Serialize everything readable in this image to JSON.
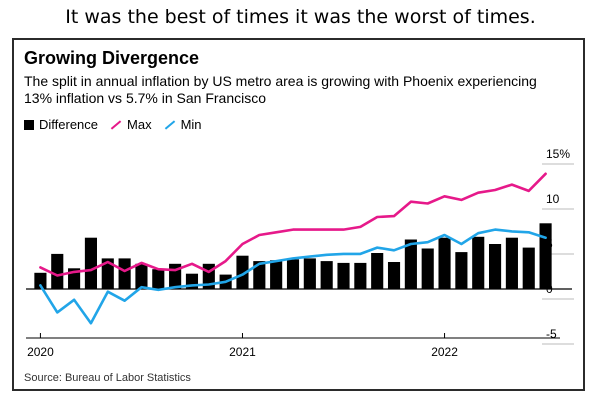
{
  "caption": "It was the best of times it was the worst of times.",
  "title": "Growing Divergence",
  "subtitle": "The split in annual inflation by US metro area is growing with Phoenix experiencing 13% inflation vs 5.7% in San Francisco",
  "source": "Source: Bureau of Labor Statistics",
  "chart_data": {
    "type": "bar",
    "title": "Growing Divergence",
    "x_tick_labels": [
      "2020",
      "2021",
      "2022"
    ],
    "y_tick_labels": [
      "15%",
      "10",
      "5",
      "0",
      "-5"
    ],
    "ylim": [
      -6,
      16
    ],
    "grid": false,
    "legend_position": "top-left",
    "series": [
      {
        "name": "Difference",
        "type": "bar",
        "color": "#000000",
        "values": [
          1.8,
          3.9,
          2.3,
          5.7,
          3.4,
          3.4,
          2.8,
          2.2,
          2.8,
          1.7,
          2.8,
          1.6,
          3.7,
          3.1,
          3.2,
          3.3,
          3.4,
          3.1,
          2.9,
          2.9,
          4.0,
          3.0,
          5.5,
          4.5,
          5.7,
          4.1,
          5.8,
          5.0,
          5.7,
          4.6,
          7.3
        ]
      },
      {
        "name": "Max",
        "type": "line",
        "color": "#e6198a",
        "values": [
          2.4,
          1.5,
          1.9,
          2.1,
          3.0,
          2.0,
          2.9,
          2.2,
          2.1,
          2.8,
          1.9,
          3.1,
          5.0,
          6.0,
          6.3,
          6.6,
          6.6,
          6.6,
          6.6,
          6.9,
          8.0,
          8.1,
          9.7,
          9.5,
          10.3,
          9.9,
          10.7,
          11.0,
          11.6,
          10.9,
          12.8
        ]
      },
      {
        "name": "Min",
        "type": "line",
        "color": "#21a5e8",
        "values": [
          0.4,
          -2.6,
          -1.2,
          -3.8,
          -0.3,
          -1.3,
          0.2,
          -0.1,
          0.2,
          0.4,
          0.5,
          0.8,
          1.6,
          2.8,
          3.1,
          3.4,
          3.6,
          3.8,
          3.9,
          3.9,
          4.6,
          4.3,
          5.0,
          5.2,
          6.0,
          5.0,
          6.2,
          6.6,
          6.4,
          6.3,
          5.7
        ]
      }
    ]
  }
}
